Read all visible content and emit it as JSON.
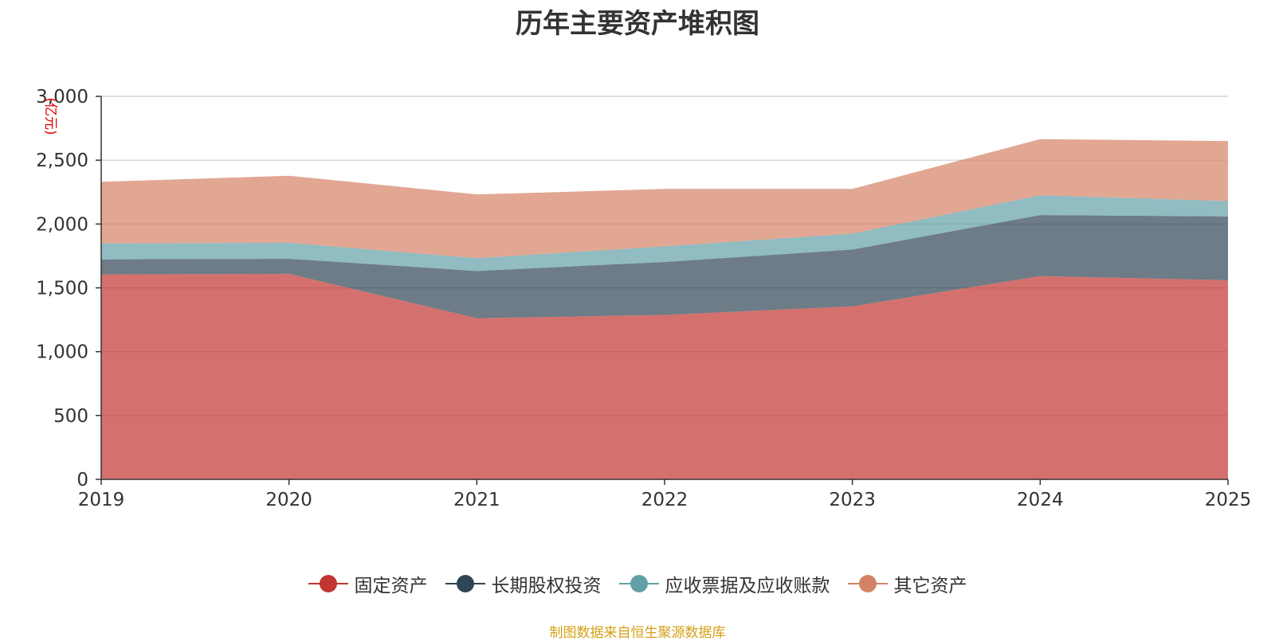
{
  "chart_data": {
    "type": "area",
    "stacked": true,
    "title": "历年主要资产堆积图",
    "ylabel": "(亿元)",
    "xlabel": "",
    "categories": [
      "2019",
      "2020",
      "2021",
      "2022",
      "2023",
      "2024",
      "2025"
    ],
    "ylim": [
      0,
      3000
    ],
    "yticks": [
      0,
      500,
      1000,
      1500,
      2000,
      2500,
      3000
    ],
    "ytick_labels": [
      "0",
      "500",
      "1,000",
      "1,500",
      "2,000",
      "2,500",
      "3,000"
    ],
    "grid": true,
    "legend_position": "bottom-center",
    "series": [
      {
        "name": "固定资产",
        "color": "#c23531",
        "values": [
          1605,
          1610,
          1262,
          1288,
          1355,
          1592,
          1560
        ]
      },
      {
        "name": "长期股权投资",
        "color": "#2f4554",
        "values": [
          118,
          118,
          370,
          415,
          445,
          478,
          500
        ]
      },
      {
        "name": "应收票据及应收账款",
        "color": "#61a0a8",
        "values": [
          125,
          125,
          100,
          122,
          125,
          155,
          120
        ]
      },
      {
        "name": "其它资产",
        "color": "#d48265",
        "values": [
          482,
          525,
          500,
          450,
          350,
          440,
          470
        ]
      }
    ],
    "source": "制图数据来自恒生聚源数据库"
  }
}
